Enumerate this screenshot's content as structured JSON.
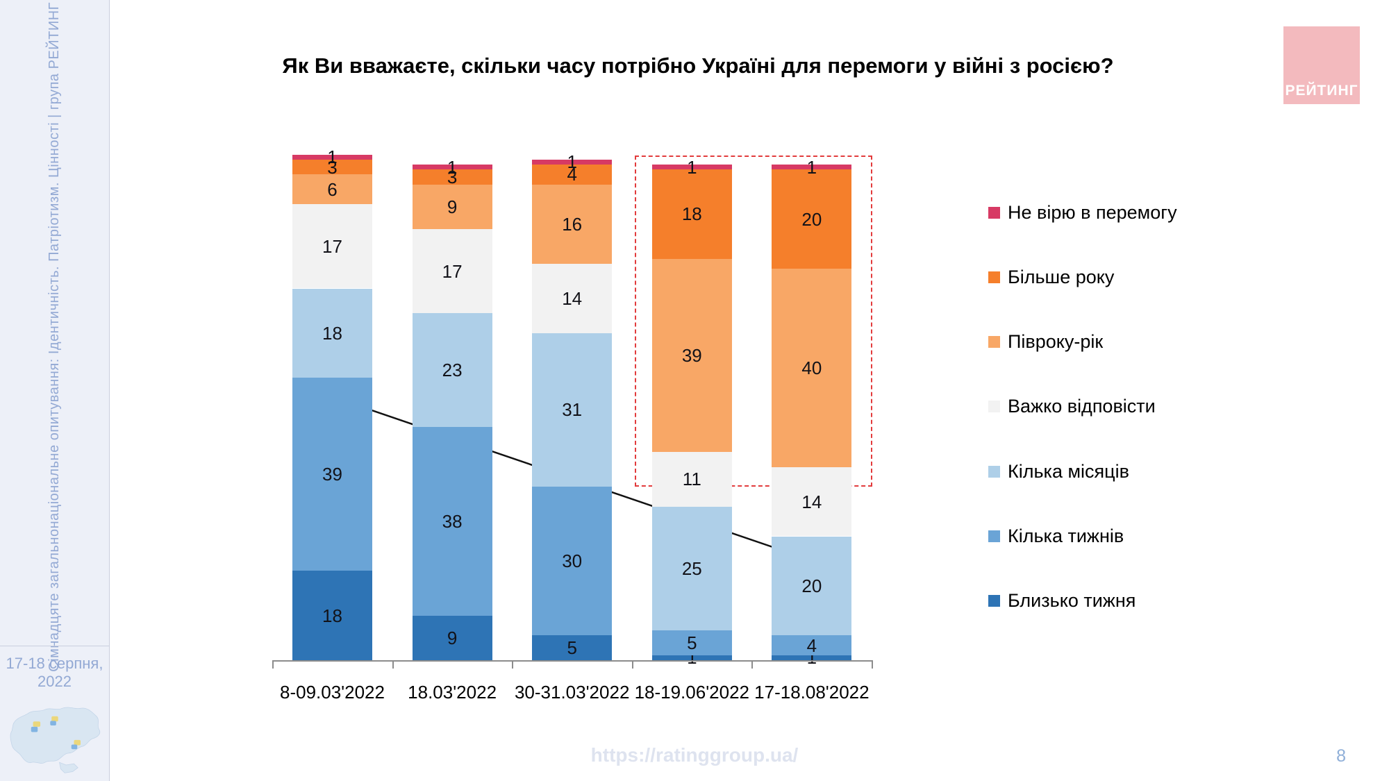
{
  "slide": {
    "title": "Як Ви вважаєте, скільки часу потрібно Україні для перемоги у війні з росією?",
    "footer_url": "https://ratinggroup.ua/",
    "page_number": "8"
  },
  "sidebar": {
    "vertical_text": "Сімнадцяте загальнонаціональне опитування: Ідентичність. Патріотизм. Цінності | група РЕЙТИНГ",
    "date_line1": "17-18 серпня,",
    "date_line2": "2022"
  },
  "logo": {
    "text": "РЕЙТИНГ",
    "background_color": "#F3BABE",
    "text_color": "#FFFFFF"
  },
  "chart_data": {
    "type": "bar",
    "stacked": true,
    "unit": "percent",
    "ylim": [
      0,
      100
    ],
    "grid": false,
    "legend_position": "right",
    "value_labels": true,
    "categories": [
      "8-09.03'2022",
      "18.03'2022",
      "30-31.03'2022",
      "18-19.06'2022",
      "17-18.08'2022"
    ],
    "series": [
      {
        "name": "Близько тижня",
        "color": "#2E74B5",
        "values": [
          18,
          9,
          5,
          1,
          1
        ]
      },
      {
        "name": "Кілька тижнів",
        "color": "#6AA4D6",
        "values": [
          39,
          38,
          30,
          5,
          4
        ]
      },
      {
        "name": "Кілька місяців",
        "color": "#AECFE8",
        "values": [
          18,
          23,
          31,
          25,
          20
        ]
      },
      {
        "name": "Важко відповісти",
        "color": "#F2F2F2",
        "values": [
          17,
          17,
          14,
          11,
          14
        ]
      },
      {
        "name": "Півроку-рік",
        "color": "#F8A766",
        "values": [
          6,
          9,
          16,
          39,
          40
        ]
      },
      {
        "name": "Більше року",
        "color": "#F57F2B",
        "values": [
          3,
          3,
          4,
          18,
          20
        ]
      },
      {
        "name": "Не вірю в перемогу",
        "color": "#D73A64",
        "values": [
          1,
          1,
          1,
          1,
          1
        ]
      }
    ],
    "annotations": {
      "highlight_box_color": "#E23B3C",
      "highlight_box_note": "dashed box around the orange sections of the last two survey waves",
      "arrow_color": "#111111",
      "arrow_note": "arrow from the 'кілька тижнів' block of the first wave to the 'кілька місяців' block of the last wave"
    }
  }
}
